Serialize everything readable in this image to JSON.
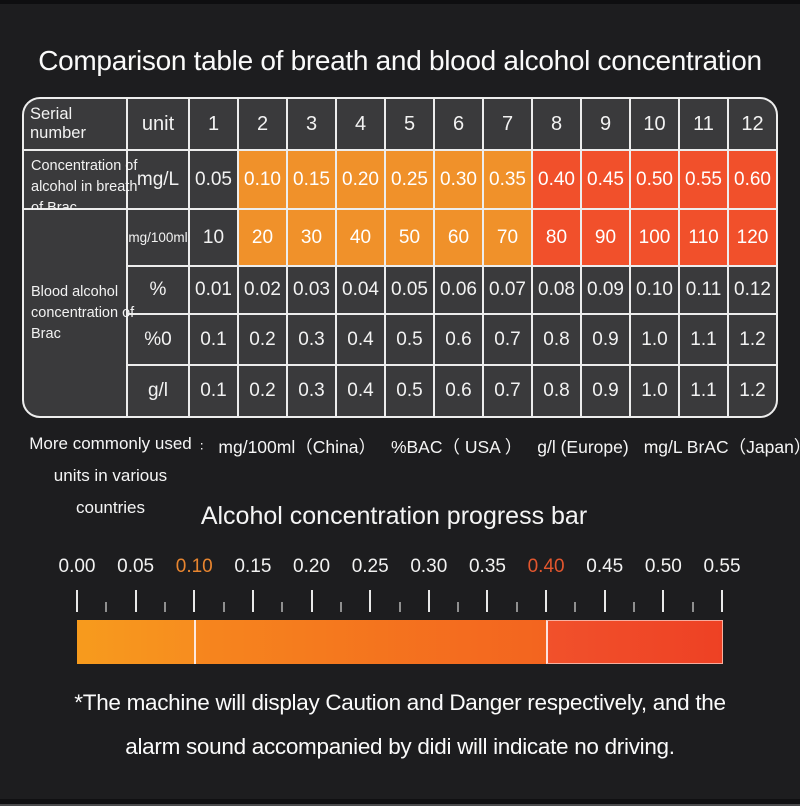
{
  "page_title": "Comparison table of breath and blood alcohol concentration",
  "table": {
    "corner_label": "Serial number",
    "unit_header": "unit",
    "serial_numbers": [
      "1",
      "2",
      "3",
      "4",
      "5",
      "6",
      "7",
      "8",
      "9",
      "10",
      "11",
      "12"
    ],
    "breath_label_lines": [
      "Concentration of",
      "alcohol in breath",
      "of Brac"
    ],
    "blood_label_lines": [
      "Blood alcohol",
      "concentration of",
      "Brac"
    ],
    "rows": [
      {
        "unit": "mg/L",
        "values": [
          "0.05",
          "0.10",
          "0.15",
          "0.20",
          "0.25",
          "0.30",
          "0.35",
          "0.40",
          "0.45",
          "0.50",
          "0.55",
          "0.60"
        ],
        "styles": [
          "dark",
          "orange",
          "orange",
          "orange",
          "orange",
          "orange",
          "orange",
          "red",
          "red",
          "red",
          "red",
          "red"
        ]
      },
      {
        "unit": "mg/100ml",
        "values": [
          "10",
          "20",
          "30",
          "40",
          "50",
          "60",
          "70",
          "80",
          "90",
          "100",
          "110",
          "120"
        ],
        "styles": [
          "dark",
          "orange",
          "orange",
          "orange",
          "orange",
          "orange",
          "orange",
          "red",
          "red",
          "red",
          "red",
          "red"
        ]
      },
      {
        "unit": "%",
        "values": [
          "0.01",
          "0.02",
          "0.03",
          "0.04",
          "0.05",
          "0.06",
          "0.07",
          "0.08",
          "0.09",
          "0.10",
          "0.11",
          "0.12"
        ],
        "styles": [
          "dark",
          "dark",
          "dark",
          "dark",
          "dark",
          "dark",
          "dark",
          "dark",
          "dark",
          "dark",
          "dark",
          "dark"
        ]
      },
      {
        "unit": "%0",
        "values": [
          "0.1",
          "0.2",
          "0.3",
          "0.4",
          "0.5",
          "0.6",
          "0.7",
          "0.8",
          "0.9",
          "1.0",
          "1.1",
          "1.2"
        ],
        "styles": [
          "dark",
          "dark",
          "dark",
          "dark",
          "dark",
          "dark",
          "dark",
          "dark",
          "dark",
          "dark",
          "dark",
          "dark"
        ]
      },
      {
        "unit": "g/l",
        "values": [
          "0.1",
          "0.2",
          "0.3",
          "0.4",
          "0.5",
          "0.6",
          "0.7",
          "0.8",
          "0.9",
          "1.0",
          "1.1",
          "1.2"
        ],
        "styles": [
          "dark",
          "dark",
          "dark",
          "dark",
          "dark",
          "dark",
          "dark",
          "dark",
          "dark",
          "dark",
          "dark",
          "dark"
        ]
      }
    ]
  },
  "units_note": {
    "label_lines": [
      "More commonly used",
      "units in various",
      "countries"
    ],
    "colon": "∶",
    "items": [
      "mg/100ml（China）",
      "%BAC（ USA ）",
      "g/l (Europe)",
      "mg/L BrAC（Japan）"
    ]
  },
  "progress": {
    "title": "Alcohol concentration progress bar",
    "tick_labels": [
      {
        "label": "0.00",
        "highlight": ""
      },
      {
        "label": "0.05",
        "highlight": ""
      },
      {
        "label": "0.10",
        "highlight": "orange"
      },
      {
        "label": "0.15",
        "highlight": ""
      },
      {
        "label": "0.20",
        "highlight": ""
      },
      {
        "label": "0.25",
        "highlight": ""
      },
      {
        "label": "0.30",
        "highlight": ""
      },
      {
        "label": "0.35",
        "highlight": ""
      },
      {
        "label": "0.40",
        "highlight": "red"
      },
      {
        "label": "0.45",
        "highlight": ""
      },
      {
        "label": "0.50",
        "highlight": ""
      },
      {
        "label": "0.55",
        "highlight": ""
      }
    ]
  },
  "footnote": {
    "lines": [
      "*The machine will display Caution and Danger respectively, and the",
      "alarm sound accompanied by didi will indicate no driving."
    ]
  },
  "colors": {
    "background": "#1D1D1F",
    "dark_cell": "#3A3A3C",
    "orange_cell": "#F0912A",
    "red_cell": "#F1502B",
    "table_line": "#EDEDED",
    "tick_highlight_orange": "#E8852F",
    "tick_highlight_red": "#E2562E",
    "bar_segment_colors": [
      "#F7941E",
      "#F4711F",
      "#F04A24"
    ]
  },
  "chart_data": [
    {
      "type": "table",
      "title": "Comparison table of breath and blood alcohol concentration",
      "columns": [
        "Serial number",
        "unit",
        "1",
        "2",
        "3",
        "4",
        "5",
        "6",
        "7",
        "8",
        "9",
        "10",
        "11",
        "12"
      ],
      "rows": [
        [
          "Concentration of alcohol in breath of Brac",
          "mg/L",
          0.05,
          0.1,
          0.15,
          0.2,
          0.25,
          0.3,
          0.35,
          0.4,
          0.45,
          0.5,
          0.55,
          0.6
        ],
        [
          "Blood alcohol concentration of Brac",
          "mg/100ml",
          10,
          20,
          30,
          40,
          50,
          60,
          70,
          80,
          90,
          100,
          110,
          120
        ],
        [
          "Blood alcohol concentration of Brac",
          "%",
          0.01,
          0.02,
          0.03,
          0.04,
          0.05,
          0.06,
          0.07,
          0.08,
          0.09,
          0.1,
          0.11,
          0.12
        ],
        [
          "Blood alcohol concentration of Brac",
          "%0",
          0.1,
          0.2,
          0.3,
          0.4,
          0.5,
          0.6,
          0.7,
          0.8,
          0.9,
          1.0,
          1.1,
          1.2
        ],
        [
          "Blood alcohol concentration of Brac",
          "g/l",
          0.1,
          0.2,
          0.3,
          0.4,
          0.5,
          0.6,
          0.7,
          0.8,
          0.9,
          1.0,
          1.1,
          1.2
        ]
      ],
      "highlighting": {
        "orange_cells_serials": [
          2,
          3,
          4,
          5,
          6,
          7
        ],
        "red_cells_serials": [
          8,
          9,
          10,
          11,
          12
        ],
        "highlighted_rows": [
          "mg/L",
          "mg/100ml"
        ]
      }
    },
    {
      "type": "bar",
      "title": "Alcohol concentration progress bar",
      "xlabel": "",
      "ylabel": "",
      "xlim": [
        0.0,
        0.55
      ],
      "tick_interval": 0.05,
      "minor_tick_interval": 0.025,
      "segments": [
        {
          "from": 0.0,
          "to": 0.1,
          "color": "#F7941E"
        },
        {
          "from": 0.1,
          "to": 0.4,
          "color": "#F4711F"
        },
        {
          "from": 0.4,
          "to": 0.55,
          "color": "#F04A24"
        }
      ],
      "highlighted_ticks": [
        0.1,
        0.4
      ]
    }
  ]
}
